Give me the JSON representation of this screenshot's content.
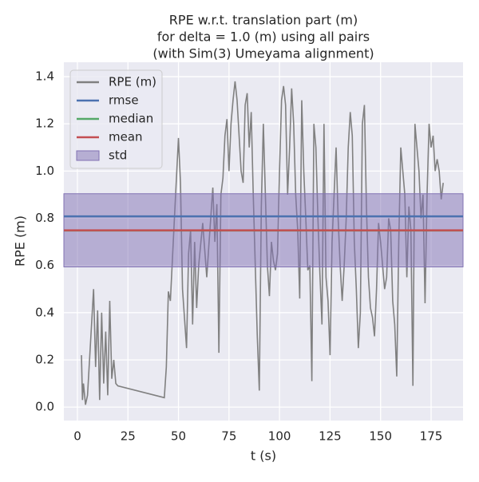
{
  "chart_data": {
    "type": "line",
    "title": [
      "RPE w.r.t. translation part (m)",
      "for delta = 1.0 (m) using all pairs",
      "(with Sim(3) Umeyama alignment)"
    ],
    "xlabel": "t (s)",
    "ylabel": "RPE (m)",
    "xlim": [
      -6.7,
      190.8
    ],
    "ylim": [
      -0.057,
      1.461
    ],
    "xticks": [
      0,
      25,
      50,
      75,
      100,
      125,
      150,
      175
    ],
    "yticks": [
      {
        "value": 0,
        "label": "0.0"
      },
      0.2,
      0.4,
      0.6,
      0.8,
      {
        "value": 1,
        "label": "1.0"
      },
      1.2,
      1.4
    ],
    "grid": true,
    "legend": "upper left",
    "series": [
      {
        "name": "RPE (m)",
        "color": "#808080",
        "x": [
          2,
          2.5,
          3,
          4,
          5,
          6,
          7,
          8,
          9,
          10,
          11,
          12,
          13,
          14,
          15,
          16,
          17,
          18,
          19,
          20,
          43,
          44,
          45,
          46,
          48,
          50,
          51,
          52,
          54,
          55,
          56,
          57,
          58,
          59,
          60,
          62,
          64,
          65,
          67,
          68,
          69,
          70,
          71,
          72,
          73,
          74,
          75,
          76,
          77,
          78,
          79,
          80,
          81,
          82,
          83,
          84,
          85,
          86,
          87,
          88,
          89,
          90,
          91,
          92,
          93,
          94,
          95,
          96,
          97,
          98,
          99,
          100,
          101,
          102,
          103,
          104,
          105,
          106,
          107,
          108,
          109,
          110,
          111,
          112,
          113,
          114,
          115,
          116,
          117,
          118,
          119,
          120,
          121,
          122,
          123,
          124,
          125,
          126,
          127,
          128,
          129,
          130,
          131,
          132,
          133,
          134,
          135,
          136,
          137,
          138,
          139,
          140,
          141,
          142,
          143,
          144,
          145,
          146,
          147,
          148,
          149,
          150,
          151,
          152,
          153,
          154,
          155,
          156,
          157,
          158,
          159,
          160,
          161,
          162,
          163,
          164,
          165,
          166,
          167,
          168,
          169,
          170,
          171,
          172,
          173,
          174,
          175,
          176,
          177,
          178,
          179,
          180,
          181
        ],
        "values": [
          0.22,
          0.03,
          0.1,
          0.01,
          0.05,
          0.2,
          0.35,
          0.5,
          0.17,
          0.41,
          0.03,
          0.4,
          0.1,
          0.32,
          0.05,
          0.45,
          0.12,
          0.2,
          0.1,
          0.09,
          0.04,
          0.17,
          0.49,
          0.45,
          0.8,
          1.14,
          0.95,
          0.5,
          0.25,
          0.65,
          0.75,
          0.35,
          0.7,
          0.42,
          0.6,
          0.78,
          0.55,
          0.68,
          0.93,
          0.7,
          0.86,
          0.23,
          0.9,
          0.97,
          1.15,
          1.22,
          1.0,
          1.2,
          1.3,
          1.38,
          1.3,
          1.15,
          1.0,
          0.95,
          1.28,
          1.33,
          1.1,
          1.25,
          0.9,
          0.6,
          0.3,
          0.07,
          0.85,
          1.2,
          0.9,
          0.6,
          0.47,
          0.7,
          0.62,
          0.58,
          0.65,
          1.0,
          1.3,
          1.36,
          1.28,
          0.9,
          1.1,
          1.35,
          1.2,
          0.9,
          0.75,
          0.46,
          1.3,
          1.0,
          0.8,
          0.58,
          0.6,
          0.11,
          1.2,
          1.1,
          0.8,
          0.56,
          0.35,
          1.2,
          0.55,
          0.45,
          0.22,
          0.7,
          0.9,
          1.1,
          0.8,
          0.6,
          0.45,
          0.6,
          0.8,
          1.1,
          1.25,
          1.15,
          0.7,
          0.5,
          0.25,
          0.4,
          1.2,
          1.28,
          0.85,
          0.55,
          0.42,
          0.38,
          0.3,
          0.5,
          0.78,
          0.7,
          0.6,
          0.5,
          0.55,
          0.8,
          0.75,
          0.45,
          0.35,
          0.13,
          0.7,
          1.1,
          1.0,
          0.9,
          0.55,
          0.85,
          0.75,
          0.09,
          1.2,
          1.1,
          1.0,
          0.8,
          0.9,
          0.44,
          0.9,
          1.2,
          1.1,
          1.15,
          1.0,
          1.05,
          1.0,
          0.88,
          0.95
        ]
      }
    ],
    "reference_lines": [
      {
        "name": "rmse",
        "color": "#4c72b0",
        "value": 0.808
      },
      {
        "name": "median",
        "color": "#55a868",
        "value": 0.748
      },
      {
        "name": "mean",
        "color": "#c44e52",
        "value": 0.749
      }
    ],
    "std_band": {
      "name": "std",
      "color": "#8172b3",
      "value": 0.155
    }
  }
}
